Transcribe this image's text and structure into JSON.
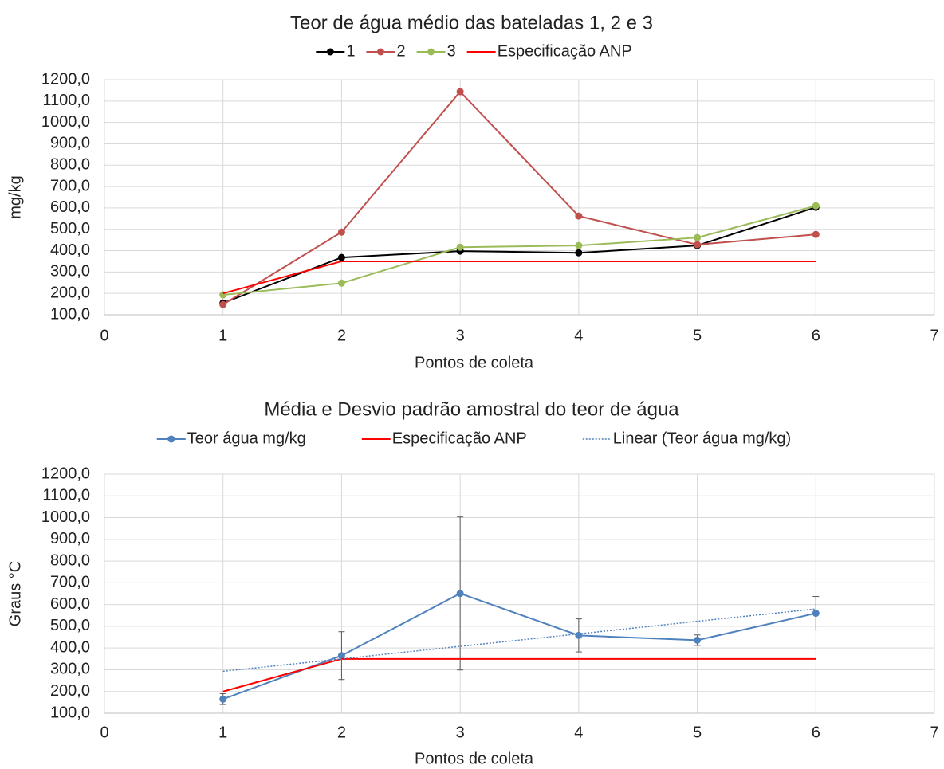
{
  "chart_data": [
    {
      "type": "line",
      "title": "Teor de água médio das bateladas 1, 2 e 3",
      "xlabel": "Pontos de coleta",
      "ylabel": "mg/kg",
      "x": [
        1,
        2,
        3,
        4,
        5,
        6
      ],
      "xlim": [
        0,
        7
      ],
      "xticks": [
        0,
        1,
        2,
        3,
        4,
        5,
        6,
        7
      ],
      "ylim": [
        100,
        1200
      ],
      "yticks": [
        {
          "value": 100,
          "label": "100,0"
        },
        {
          "value": 200,
          "label": "200,0"
        },
        {
          "value": 300,
          "label": "300,0"
        },
        {
          "value": 400,
          "label": "400,0"
        },
        {
          "value": 500,
          "label": "500,0"
        },
        {
          "value": 600,
          "label": "600,0"
        },
        {
          "value": 700,
          "label": "700,0"
        },
        {
          "value": 800,
          "label": "800,0"
        },
        {
          "value": 900,
          "label": "900,0"
        },
        {
          "value": 1000,
          "label": "1000,0"
        },
        {
          "value": 1100,
          "label": "1100,0"
        },
        {
          "value": 1200,
          "label": "1200,0"
        }
      ],
      "grid": true,
      "series": [
        {
          "name": "1",
          "color": "#000000",
          "marker": true,
          "values": [
            155,
            368,
            398,
            390,
            424,
            603
          ]
        },
        {
          "name": "2",
          "color": "#c0504d",
          "marker": true,
          "values": [
            148,
            487,
            1144,
            562,
            428,
            476
          ]
        },
        {
          "name": "3",
          "color": "#9bbb59",
          "marker": true,
          "values": [
            193,
            248,
            416,
            424,
            461,
            610
          ]
        },
        {
          "name": "Especificação ANP",
          "color": "#ff0000",
          "marker": false,
          "values": [
            200,
            350,
            350,
            350,
            350,
            350
          ]
        }
      ]
    },
    {
      "type": "line",
      "title": "Média e Desvio padrão amostral do teor de água",
      "xlabel": "Pontos de coleta",
      "ylabel": "Graus °C",
      "x": [
        1,
        2,
        3,
        4,
        5,
        6
      ],
      "xlim": [
        0,
        7
      ],
      "xticks": [
        0,
        1,
        2,
        3,
        4,
        5,
        6,
        7
      ],
      "ylim": [
        100,
        1200
      ],
      "yticks": [
        {
          "value": 100,
          "label": "100,0"
        },
        {
          "value": 200,
          "label": "200,0"
        },
        {
          "value": 300,
          "label": "300,0"
        },
        {
          "value": 400,
          "label": "400,0"
        },
        {
          "value": 500,
          "label": "500,0"
        },
        {
          "value": 600,
          "label": "600,0"
        },
        {
          "value": 700,
          "label": "700,0"
        },
        {
          "value": 800,
          "label": "800,0"
        },
        {
          "value": 900,
          "label": "900,0"
        },
        {
          "value": 1000,
          "label": "1000,0"
        },
        {
          "value": 1100,
          "label": "1100,0"
        },
        {
          "value": 1200,
          "label": "1200,0"
        }
      ],
      "grid": true,
      "series": [
        {
          "name": "Teor água mg/kg",
          "color": "#4f81bd",
          "marker": true,
          "values": [
            165,
            365,
            651,
            458,
            436,
            560
          ],
          "errors": [
            25,
            110,
            352,
            76,
            24,
            77
          ]
        },
        {
          "name": "Especificação ANP",
          "color": "#ff0000",
          "marker": false,
          "values": [
            200,
            350,
            350,
            350,
            350,
            350
          ]
        },
        {
          "name": "Linear (Teor água mg/kg)",
          "color": "#4f81bd",
          "marker": false,
          "dotted": true,
          "values": [
            293,
            350,
            408,
            465,
            523,
            580
          ]
        }
      ]
    }
  ]
}
